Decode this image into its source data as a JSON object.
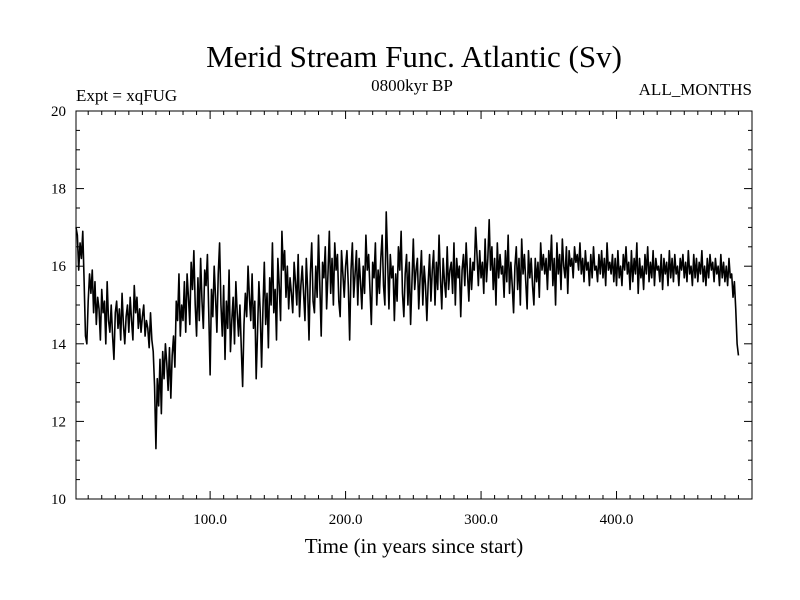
{
  "chart_data": {
    "type": "line",
    "title": "Merid Stream Func. Atlantic (Sv)",
    "subtitle_left": "Expt = xqFUG",
    "subtitle_center": "0800kyr BP",
    "subtitle_right": "ALL_MONTHS",
    "xlabel": "Time (in years since start)",
    "ylabel": "",
    "xlim": [
      1,
      500
    ],
    "ylim": [
      10,
      20
    ],
    "x_ticks": [
      100,
      200,
      300,
      400
    ],
    "x_tick_labels": [
      "100.0",
      "200.0",
      "300.0",
      "400.0"
    ],
    "y_ticks": [
      10,
      12,
      14,
      16,
      18,
      20
    ],
    "y_tick_labels": [
      "10",
      "12",
      "14",
      "16",
      "18",
      "20"
    ],
    "grid": false,
    "series": [
      {
        "name": "xqFUG",
        "x_start": 1,
        "x_step": 1,
        "values": [
          17.0,
          16.8,
          15.9,
          16.6,
          16.2,
          16.9,
          15.6,
          14.2,
          14.0,
          15.1,
          15.8,
          15.3,
          15.9,
          14.8,
          15.6,
          14.5,
          15.2,
          14.9,
          14.1,
          15.4,
          14.8,
          15.1,
          14.0,
          15.6,
          14.6,
          14.3,
          15.0,
          14.2,
          13.6,
          14.8,
          15.1,
          14.4,
          14.9,
          14.1,
          15.3,
          14.5,
          14.0,
          14.7,
          15.0,
          14.3,
          15.2,
          14.6,
          14.1,
          15.5,
          14.8,
          15.2,
          14.4,
          14.9,
          14.3,
          14.7,
          15.0,
          14.2,
          14.6,
          14.4,
          13.9,
          14.8,
          14.1,
          13.8,
          12.9,
          11.3,
          13.1,
          12.4,
          13.6,
          12.2,
          13.8,
          13.1,
          14.0,
          13.5,
          12.8,
          13.9,
          12.6,
          13.7,
          14.2,
          13.4,
          15.1,
          14.6,
          15.8,
          14.2,
          15.0,
          14.6,
          15.6,
          14.3,
          15.8,
          15.2,
          14.5,
          16.1,
          15.4,
          16.4,
          15.0,
          14.2,
          15.7,
          14.6,
          16.2,
          15.1,
          14.4,
          15.9,
          15.5,
          16.3,
          14.8,
          13.2,
          15.4,
          14.7,
          16.0,
          15.2,
          14.3,
          15.8,
          16.6,
          15.0,
          14.2,
          15.5,
          13.6,
          15.1,
          14.4,
          15.9,
          13.8,
          14.6,
          15.2,
          14.0,
          15.6,
          14.8,
          14.2,
          15.0,
          13.9,
          12.9,
          14.5,
          15.3,
          14.7,
          16.0,
          15.2,
          14.6,
          15.8,
          14.4,
          15.1,
          13.1,
          14.3,
          15.6,
          14.8,
          13.4,
          14.9,
          16.1,
          14.5,
          15.3,
          13.9,
          15.7,
          15.0,
          16.6,
          14.8,
          15.4,
          14.1,
          16.2,
          15.5,
          14.6,
          16.9,
          15.9,
          16.4,
          15.2,
          16.0,
          14.9,
          15.7,
          15.3,
          14.8,
          16.1,
          15.6,
          15.0,
          16.3,
          14.7,
          15.5,
          16.0,
          15.3,
          14.6,
          16.2,
          15.4,
          14.1,
          15.8,
          16.6,
          15.1,
          14.8,
          16.0,
          15.2,
          16.8,
          15.5,
          14.2,
          16.1,
          15.7,
          16.5,
          14.9,
          15.8,
          16.9,
          15.3,
          16.2,
          15.0,
          16.6,
          15.9,
          16.3,
          15.1,
          14.7,
          16.4,
          15.8,
          15.2,
          16.0,
          16.4,
          15.5,
          14.1,
          15.9,
          16.6,
          15.2,
          15.8,
          16.4,
          15.0,
          16.2,
          15.6,
          14.9,
          16.0,
          15.3,
          16.8,
          15.9,
          16.3,
          15.4,
          14.5,
          16.1,
          15.7,
          16.6,
          15.0,
          15.9,
          15.3,
          16.2,
          16.8,
          15.5,
          15.0,
          17.4,
          16.2,
          14.9,
          16.3,
          15.7,
          16.0,
          14.6,
          15.8,
          15.1,
          16.5,
          15.9,
          16.9,
          15.3,
          14.7,
          15.8,
          16.3,
          15.0,
          16.1,
          14.5,
          15.6,
          16.7,
          15.4,
          15.9,
          16.2,
          14.9,
          15.7,
          16.4,
          15.0,
          16.0,
          15.5,
          14.6,
          15.6,
          16.3,
          15.1,
          15.9,
          16.4,
          15.0,
          16.1,
          15.4,
          16.8,
          15.7,
          14.9,
          16.2,
          15.6,
          15.2,
          16.5,
          15.4,
          15.9,
          16.1,
          15.3,
          16.6,
          15.0,
          16.2,
          15.7,
          16.0,
          14.7,
          15.9,
          16.3,
          15.5,
          16.6,
          15.8,
          15.1,
          16.2,
          15.4,
          16.1,
          15.9,
          17.0,
          16.3,
          15.5,
          16.4,
          15.7,
          16.1,
          15.3,
          16.7,
          15.6,
          16.2,
          17.2,
          15.9,
          16.5,
          15.4,
          16.2,
          15.0,
          16.6,
          15.7,
          16.3,
          15.8,
          16.0,
          15.2,
          16.4,
          15.6,
          16.8,
          15.3,
          16.1,
          15.5,
          14.8,
          16.0,
          16.5,
          15.4,
          16.2,
          15.0,
          16.7,
          15.8,
          16.3,
          15.6,
          14.9,
          16.4,
          15.7,
          16.2,
          15.5,
          15.0,
          16.2,
          15.6,
          16.1,
          15.2,
          16.6,
          15.9,
          16.3,
          15.8,
          16.2,
          15.4,
          16.4,
          15.9,
          16.8,
          15.5,
          16.2,
          15.0,
          16.6,
          15.8,
          16.3,
          15.4,
          16.7,
          16.0,
          15.7,
          16.5,
          15.3,
          16.4,
          16.0,
          16.2,
          15.7,
          16.5,
          16.1,
          16.3,
          15.9,
          16.6,
          15.8,
          16.2,
          15.6,
          16.4,
          15.9,
          16.1,
          15.5,
          16.3,
          15.7,
          16.5,
          15.9,
          16.0,
          15.6,
          16.3,
          15.8,
          16.4,
          15.7,
          16.2,
          15.5,
          16.6,
          15.9,
          16.1,
          15.8,
          16.3,
          15.6,
          16.2,
          15.5,
          16.4,
          15.7,
          16.0,
          15.5,
          16.3,
          15.9,
          16.5,
          15.8,
          16.1,
          15.4,
          16.4,
          15.6,
          16.2,
          15.8,
          16.6,
          15.3,
          16.2,
          15.7,
          16.0,
          15.4,
          16.3,
          15.8,
          16.5,
          15.6,
          16.1,
          15.7,
          16.4,
          15.5,
          16.2,
          15.9,
          16.0,
          15.6,
          16.3,
          15.4,
          16.2,
          15.8,
          16.1,
          15.5,
          16.4,
          15.7,
          16.2,
          15.6,
          16.3,
          15.8,
          16.0,
          15.5,
          16.2,
          15.9,
          16.3,
          15.7,
          16.1,
          15.6,
          16.4,
          15.8,
          16.0,
          15.5,
          16.3,
          15.7,
          16.2,
          15.6,
          16.1,
          15.8,
          16.4,
          15.6,
          16.0,
          15.5,
          16.2,
          15.7,
          16.3,
          15.9,
          16.1,
          15.6,
          16.2,
          15.8,
          16.0,
          15.5,
          16.3,
          15.7,
          16.1,
          15.6,
          16.0,
          15.5,
          16.2,
          15.7,
          15.8,
          15.2,
          15.6,
          14.9,
          14.0,
          13.7
        ]
      }
    ]
  }
}
